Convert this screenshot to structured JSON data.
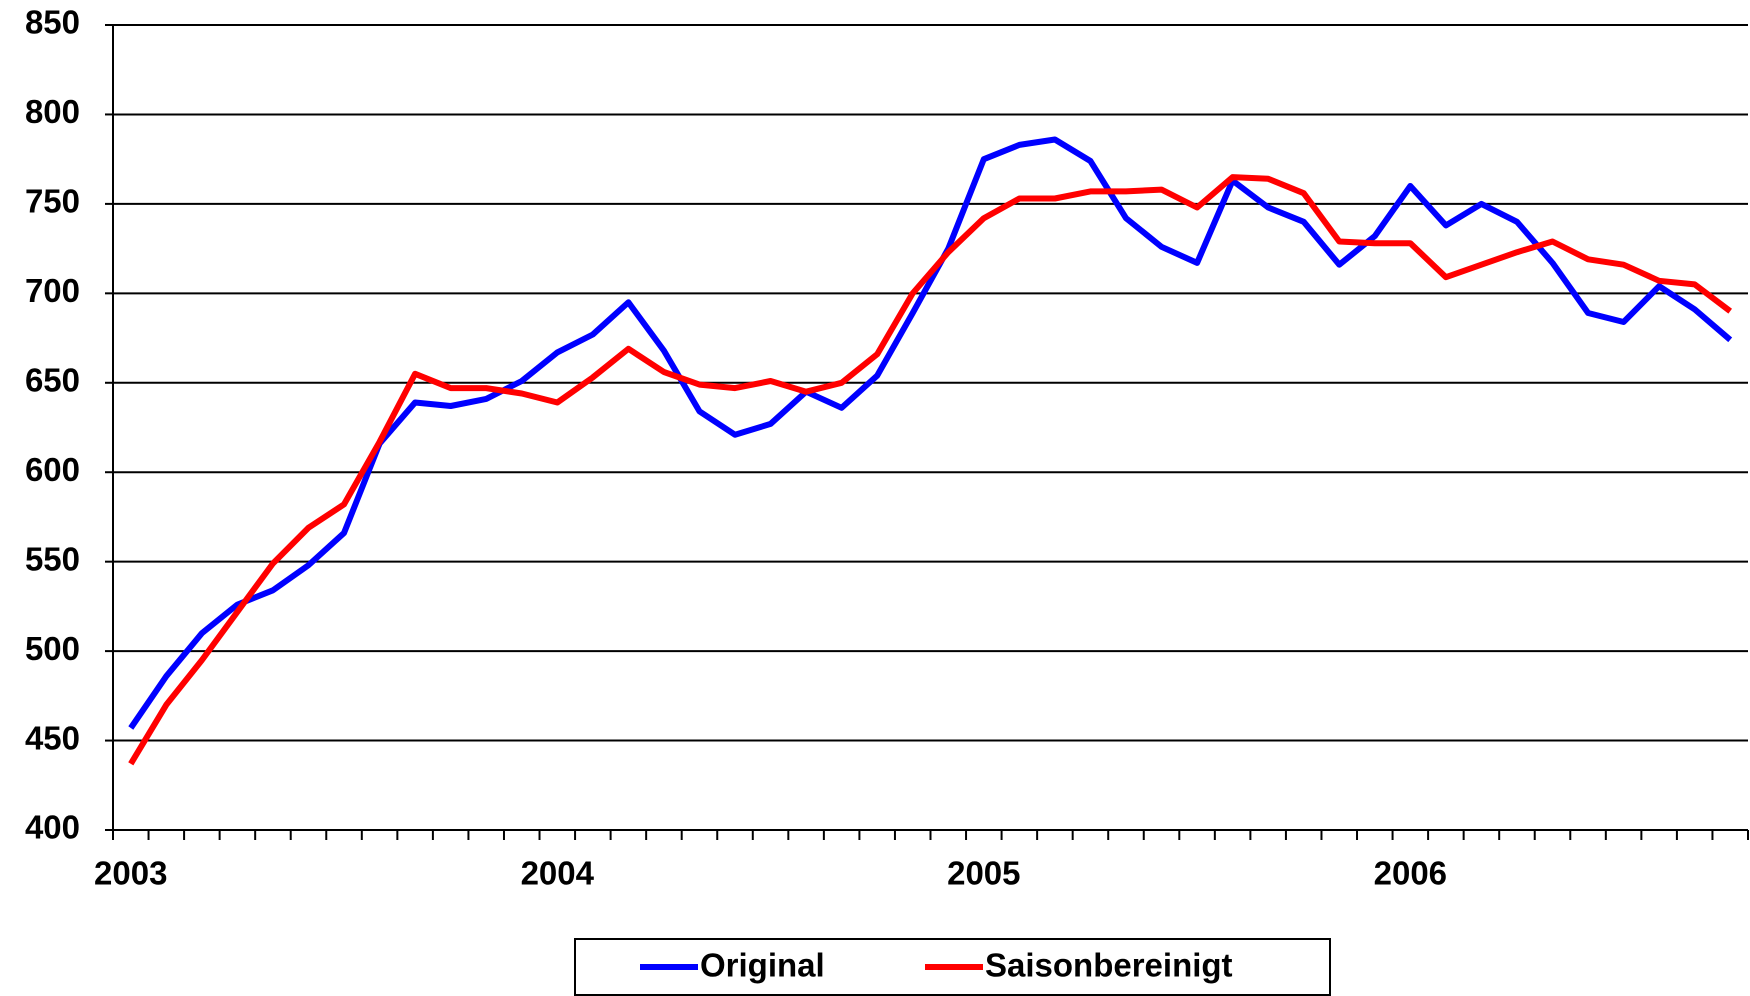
{
  "chart_data": {
    "type": "line",
    "categories": [
      "2003",
      null,
      null,
      null,
      null,
      null,
      null,
      null,
      null,
      null,
      null,
      null,
      "2004",
      null,
      null,
      null,
      null,
      null,
      null,
      null,
      null,
      null,
      null,
      null,
      "2005",
      null,
      null,
      null,
      null,
      null,
      null,
      null,
      null,
      null,
      null,
      null,
      "2006",
      null,
      null,
      null,
      null,
      null,
      null,
      null,
      null,
      null
    ],
    "series": [
      {
        "name": "Original",
        "color": "#0000ff",
        "values": [
          457,
          486,
          510,
          526,
          534,
          548,
          566,
          616,
          639,
          637,
          641,
          651,
          667,
          677,
          695,
          668,
          634,
          621,
          627,
          645,
          636,
          654,
          689,
          725,
          775,
          783,
          786,
          774,
          742,
          726,
          717,
          763,
          748,
          740,
          716,
          732,
          760,
          738,
          750,
          740,
          717,
          689,
          684,
          704,
          691,
          674
        ]
      },
      {
        "name": "Saisonbereinigt",
        "color": "#ff0000",
        "values": [
          437,
          470,
          495,
          522,
          549,
          569,
          582,
          617,
          655,
          647,
          647,
          644,
          639,
          653,
          669,
          656,
          649,
          647,
          651,
          645,
          650,
          666,
          700,
          723,
          742,
          753,
          753,
          757,
          757,
          758,
          748,
          765,
          764,
          756,
          729,
          728,
          728,
          709,
          716,
          723,
          729,
          719,
          716,
          707,
          705,
          690
        ]
      }
    ],
    "ylim": [
      400,
      850
    ],
    "yticks": [
      400,
      450,
      500,
      550,
      600,
      650,
      700,
      750,
      800,
      850
    ],
    "grid": true,
    "legend": "bottom"
  }
}
